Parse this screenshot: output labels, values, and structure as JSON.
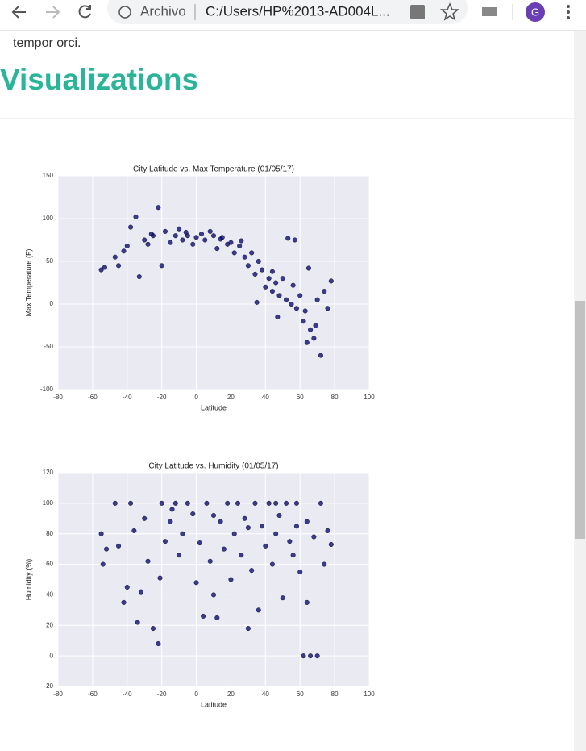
{
  "browser": {
    "security_label": "Archivo",
    "url": "C:/Users/HP%2013-AD004L...",
    "avatar": "G"
  },
  "page": {
    "text": "tempor orci.",
    "heading": "Visualizations"
  },
  "chart_data": [
    {
      "type": "scatter",
      "title": "City Latitude vs. Max Temperature (01/05/17)",
      "x_label": "Latitude",
      "y_label": "Max Temperature (F)",
      "color": "#0d0d7a",
      "grid": true,
      "xlim": [
        -80,
        100
      ],
      "xticks": [
        -80,
        -60,
        -40,
        -20,
        0,
        20,
        40,
        60,
        80,
        100
      ],
      "ylim": [
        -100,
        150
      ],
      "yticks": [
        -100,
        -50,
        0,
        50,
        100,
        150
      ],
      "x": [
        -55,
        -53,
        -47,
        -45,
        -42,
        -38,
        -35,
        -33,
        -30,
        -28,
        -25,
        -22,
        -20,
        -18,
        -15,
        -12,
        -10,
        -8,
        -5,
        -2,
        0,
        3,
        5,
        8,
        10,
        12,
        15,
        18,
        20,
        22,
        25,
        28,
        30,
        32,
        34,
        36,
        38,
        40,
        42,
        44,
        46,
        48,
        50,
        52,
        53,
        55,
        57,
        58,
        60,
        62,
        64,
        65,
        66,
        68,
        70,
        72,
        74,
        76,
        78,
        35,
        47,
        -40,
        -26,
        -6,
        14,
        26,
        44,
        56,
        63,
        69
      ],
      "values": [
        40,
        43,
        55,
        45,
        62,
        90,
        102,
        32,
        75,
        70,
        80,
        113,
        45,
        85,
        72,
        80,
        88,
        75,
        80,
        70,
        78,
        82,
        75,
        85,
        80,
        65,
        78,
        70,
        72,
        60,
        68,
        55,
        45,
        60,
        35,
        50,
        40,
        20,
        30,
        15,
        25,
        10,
        30,
        5,
        77,
        0,
        75,
        -5,
        10,
        -20,
        -45,
        42,
        -30,
        -40,
        5,
        -60,
        15,
        -5,
        27,
        2,
        -15,
        68,
        82,
        84,
        76,
        74,
        38,
        22,
        -8,
        -25
      ]
    },
    {
      "type": "scatter",
      "title": "City Latitude vs. Humidity (01/05/17)",
      "x_label": "Latitude",
      "y_label": "Humidity (%)",
      "color": "#0d0d7a",
      "grid": true,
      "xlim": [
        -80,
        100
      ],
      "xticks": [
        -80,
        -60,
        -40,
        -20,
        0,
        20,
        40,
        60,
        80,
        100
      ],
      "ylim": [
        -20,
        120
      ],
      "yticks": [
        -20,
        0,
        20,
        40,
        60,
        80,
        100,
        120
      ],
      "x": [
        -55,
        -54,
        -52,
        -47,
        -45,
        -42,
        -40,
        -38,
        -36,
        -34,
        -32,
        -30,
        -28,
        -25,
        -22,
        -21,
        -20,
        -18,
        -15,
        -12,
        -10,
        -8,
        -5,
        -2,
        0,
        2,
        4,
        6,
        8,
        10,
        12,
        14,
        16,
        18,
        20,
        22,
        24,
        26,
        28,
        30,
        32,
        34,
        36,
        38,
        40,
        42,
        44,
        46,
        48,
        50,
        52,
        54,
        56,
        58,
        60,
        62,
        64,
        66,
        68,
        70,
        72,
        74,
        76,
        78,
        46,
        58,
        -14,
        10,
        30,
        64
      ],
      "values": [
        80,
        60,
        70,
        100,
        72,
        35,
        45,
        100,
        82,
        22,
        42,
        90,
        62,
        18,
        8,
        51,
        100,
        75,
        88,
        100,
        66,
        80,
        100,
        93,
        48,
        74,
        26,
        100,
        62,
        40,
        25,
        88,
        70,
        100,
        50,
        80,
        100,
        66,
        90,
        18,
        56,
        100,
        30,
        85,
        72,
        100,
        60,
        80,
        92,
        38,
        100,
        75,
        66,
        85,
        55,
        0,
        35,
        0,
        78,
        0,
        100,
        60,
        82,
        73,
        100,
        100,
        96,
        92,
        84,
        88
      ]
    }
  ]
}
